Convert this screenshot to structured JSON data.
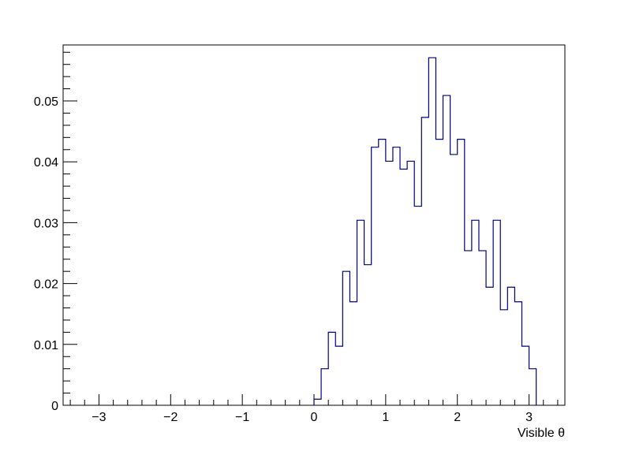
{
  "chart_data": {
    "type": "histogram",
    "title": "",
    "xlabel": "Visible  θ",
    "ylabel": "",
    "xlim": [
      -3.5,
      3.5
    ],
    "ylim": [
      0,
      0.0592
    ],
    "grid": false,
    "legend": "none",
    "line_color": "#000080",
    "x_ticks": [
      -3,
      -2,
      -1,
      0,
      1,
      2,
      3
    ],
    "x_tick_labels": [
      "−3",
      "−2",
      "−1",
      "0",
      "1",
      "2",
      "3"
    ],
    "y_ticks": [
      0,
      0.01,
      0.02,
      0.03,
      0.04,
      0.05
    ],
    "y_tick_labels": [
      "0",
      "0.01",
      "0.02",
      "0.03",
      "0.04",
      "0.05"
    ],
    "bin_width": 0.1,
    "bin_start": 0.0,
    "values": [
      0.001,
      0.006,
      0.012,
      0.0097,
      0.022,
      0.017,
      0.0304,
      0.0231,
      0.0424,
      0.0437,
      0.0401,
      0.0424,
      0.0388,
      0.0401,
      0.0327,
      0.0473,
      0.0571,
      0.0437,
      0.0509,
      0.0412,
      0.0437,
      0.0254,
      0.0304,
      0.0254,
      0.0194,
      0.0304,
      0.0157,
      0.0194,
      0.017,
      0.0097,
      0.006
    ]
  }
}
